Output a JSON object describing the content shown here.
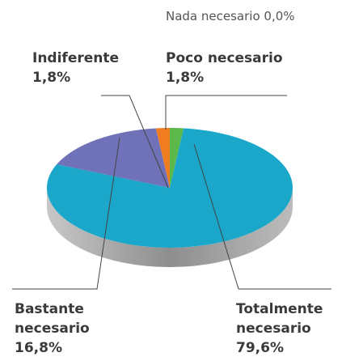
{
  "chart_data": {
    "type": "pie",
    "categories": [
      "Nada necesario",
      "Poco necesario",
      "Indiferente",
      "Bastante necesario",
      "Totalmente necesario"
    ],
    "values": [
      0.0,
      1.8,
      1.8,
      16.8,
      79.6
    ],
    "value_labels": [
      "0,0%",
      "1,8%",
      "1,8%",
      "16,8%",
      "79,6%"
    ],
    "colors": [
      "#9e9e9e",
      "#5cb84a",
      "#f07c22",
      "#6f72b8",
      "#1aa7ca"
    ]
  }
}
